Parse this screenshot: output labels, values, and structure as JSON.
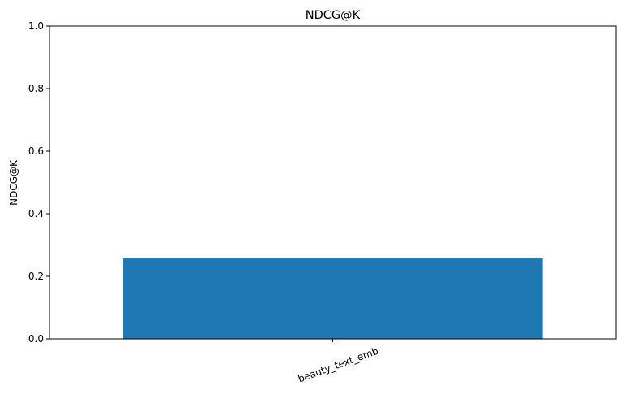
{
  "chart_data": {
    "type": "bar",
    "title": "NDCG@K",
    "xlabel": "",
    "ylabel": "NDCG@K",
    "categories": [
      "beauty_text_emb"
    ],
    "values": [
      0.257
    ],
    "ylim": [
      0,
      1.0
    ],
    "yticks": [
      "0.0",
      "0.2",
      "0.4",
      "0.6",
      "0.8",
      "1.0"
    ],
    "grid": false,
    "bar_color": "#1f77b4"
  }
}
